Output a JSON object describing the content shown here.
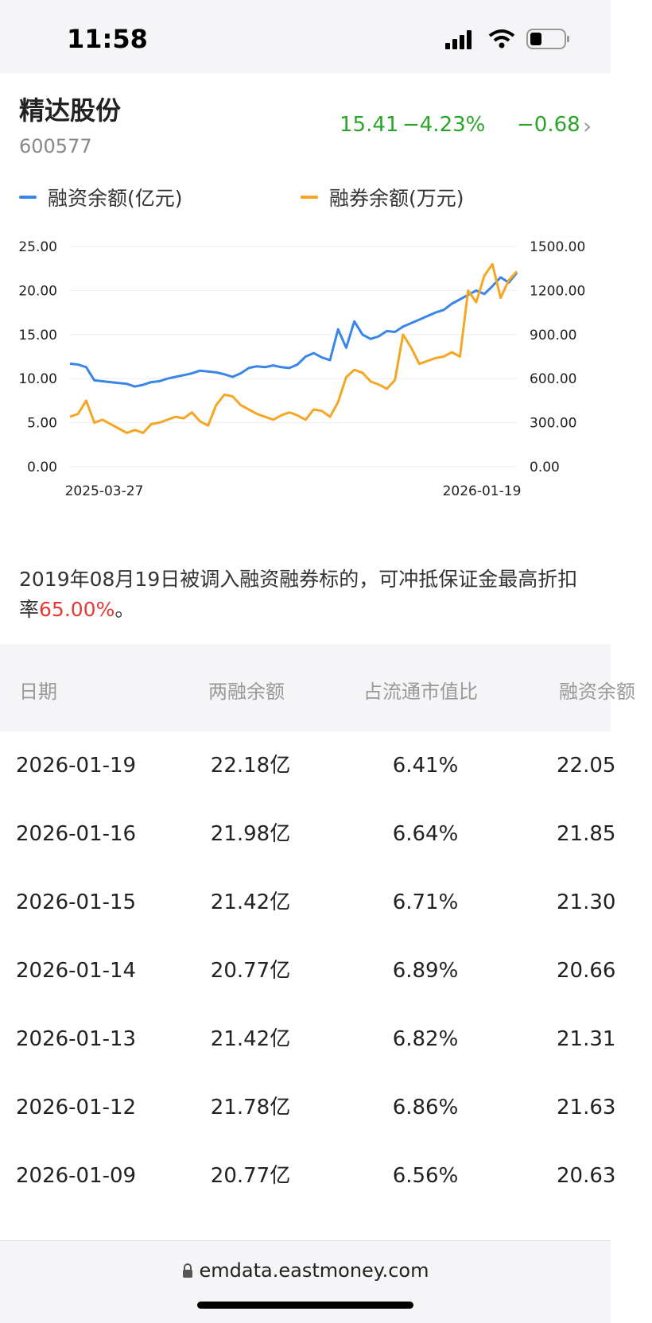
{
  "status": {
    "time": "11:58"
  },
  "stock": {
    "name": "精达股份",
    "code": "600577",
    "price": "15.41",
    "pct": "−4.23%",
    "change": "−0.68"
  },
  "legend": {
    "margin": {
      "label": "融资余额(亿元)",
      "color": "#3a86e8"
    },
    "short": {
      "label": "融券余额(万元)",
      "color": "#f5a623"
    }
  },
  "chart_data": {
    "type": "line",
    "x_start": "2025-03-27",
    "x_end": "2026-01-19",
    "left_axis": {
      "ticks": [
        "25.00",
        "20.00",
        "15.00",
        "10.00",
        "5.00",
        "0.00"
      ],
      "range": [
        0,
        25
      ]
    },
    "right_axis": {
      "ticks": [
        "1500.00",
        "1200.00",
        "900.00",
        "600.00",
        "300.00",
        "0.00"
      ],
      "range": [
        0,
        1500
      ]
    },
    "series": [
      {
        "name": "融资余额(亿元)",
        "axis": "left",
        "color": "#3a86e8",
        "values": [
          11.7,
          11.6,
          11.3,
          9.8,
          9.7,
          9.6,
          9.5,
          9.4,
          9.1,
          9.3,
          9.6,
          9.7,
          10.0,
          10.2,
          10.4,
          10.6,
          10.9,
          10.8,
          10.7,
          10.5,
          10.2,
          10.6,
          11.2,
          11.4,
          11.3,
          11.5,
          11.3,
          11.2,
          11.6,
          12.5,
          12.9,
          12.4,
          12.1,
          15.6,
          13.5,
          16.5,
          15.0,
          14.5,
          14.8,
          15.4,
          15.3,
          15.9,
          16.3,
          16.7,
          17.1,
          17.5,
          17.8,
          18.5,
          19.0,
          19.5,
          20.0,
          19.6,
          20.5,
          21.5,
          20.9,
          22.0
        ]
      },
      {
        "name": "融券余额(万元)",
        "axis": "right",
        "color": "#f5a623",
        "values": [
          340,
          360,
          450,
          300,
          320,
          290,
          260,
          230,
          250,
          230,
          290,
          300,
          320,
          340,
          330,
          370,
          310,
          280,
          420,
          490,
          480,
          420,
          390,
          360,
          340,
          320,
          350,
          370,
          350,
          320,
          390,
          380,
          340,
          440,
          610,
          660,
          640,
          580,
          560,
          530,
          590,
          900,
          810,
          700,
          720,
          740,
          750,
          780,
          750,
          1200,
          1120,
          1300,
          1380,
          1150,
          1270,
          1330
        ]
      }
    ]
  },
  "note": {
    "pre": "2019年08月19日被调入融资融券标的，可冲抵保证金最高折扣率",
    "rate": "65.00%",
    "post": "。"
  },
  "table": {
    "headers": [
      "日期",
      "两融余额",
      "占流通市值比",
      "融资余额"
    ],
    "rows": [
      {
        "date": "2026-01-19",
        "total": "22.18亿",
        "ratio": "6.41%",
        "margin": "22.05"
      },
      {
        "date": "2026-01-16",
        "total": "21.98亿",
        "ratio": "6.64%",
        "margin": "21.85"
      },
      {
        "date": "2026-01-15",
        "total": "21.42亿",
        "ratio": "6.71%",
        "margin": "21.30"
      },
      {
        "date": "2026-01-14",
        "total": "20.77亿",
        "ratio": "6.89%",
        "margin": "20.66"
      },
      {
        "date": "2026-01-13",
        "total": "21.42亿",
        "ratio": "6.82%",
        "margin": "21.31"
      },
      {
        "date": "2026-01-12",
        "total": "21.78亿",
        "ratio": "6.86%",
        "margin": "21.63"
      },
      {
        "date": "2026-01-09",
        "total": "20.77亿",
        "ratio": "6.56%",
        "margin": "20.63"
      }
    ]
  },
  "browser": {
    "url": "emdata.eastmoney.com"
  }
}
